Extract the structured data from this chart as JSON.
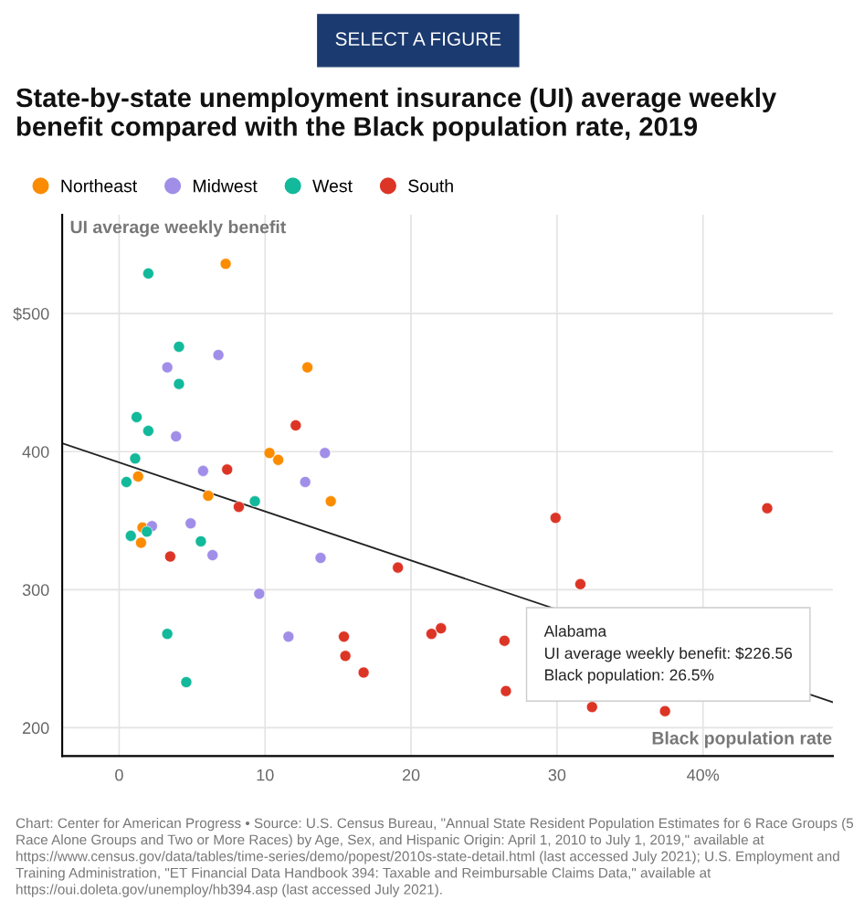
{
  "chart_data": {
    "type": "scatter",
    "title": "State-by-state unemployment insurance (UI) average weekly benefit compared with the Black population rate, 2019",
    "xlabel": "Black population rate",
    "ylabel": "UI average weekly benefit",
    "xlim": [
      -3.9,
      48.9
    ],
    "ylim": [
      179.5,
      571.5
    ],
    "xticks": [
      0,
      10,
      20,
      30,
      {
        "value": 40,
        "label": "40%"
      }
    ],
    "yticks": [
      200,
      300,
      400,
      {
        "value": 500,
        "label": "$500"
      }
    ],
    "grid": true,
    "legend": "top left",
    "marker": "circle",
    "series": [
      {
        "name": "Northeast",
        "color": "#fb8c00",
        "x": [
          7.3,
          12.9,
          10.3,
          10.9,
          1.3,
          6.1,
          14.5,
          1.6,
          1.5
        ],
        "values": [
          536,
          461,
          399,
          394,
          382,
          368,
          364,
          345,
          334
        ]
      },
      {
        "name": "Midwest",
        "color": "#a08ee8",
        "x": [
          6.8,
          3.3,
          3.9,
          14.1,
          5.75,
          12.75,
          4.9,
          2.25,
          6.4,
          13.8,
          9.6,
          11.6
        ],
        "values": [
          470,
          461,
          411,
          399,
          386,
          378,
          348,
          346,
          325,
          323,
          297,
          266
        ]
      },
      {
        "name": "West",
        "color": "#12b99a",
        "x": [
          2.0,
          4.1,
          4.1,
          1.2,
          2.0,
          1.1,
          0.5,
          9.3,
          0.8,
          1.9,
          5.6,
          3.3,
          4.6
        ],
        "values": [
          529,
          476,
          449,
          425,
          415,
          395,
          378,
          364,
          339,
          342,
          335,
          268,
          233
        ]
      },
      {
        "name": "South",
        "color": "#dc3526",
        "x": [
          12.1,
          7.4,
          8.2,
          3.5,
          19.1,
          29.9,
          44.4,
          31.6,
          15.4,
          15.5,
          16.75,
          21.4,
          22.05,
          26.4,
          26.5,
          32.4,
          37.4
        ],
        "values": [
          419,
          387,
          360,
          324,
          316,
          352,
          359,
          304,
          266,
          252,
          240,
          268,
          272,
          263,
          226.56,
          215,
          212
        ]
      },
      {
        "type": "line",
        "marker": "none",
        "color": "#222222",
        "x": [
          -3.9,
          48.9
        ],
        "values": [
          406,
          218.5
        ]
      }
    ],
    "annotations": [
      "SELECT A FIGURE",
      {
        "text": "Alabama\nUI average weekly benefit: $226.56\nBlack population: 26.5%",
        "x": 26.5,
        "y": 226.56
      },
      "Chart: Center for American Progress • Source: U.S. Census Bureau, \"Annual State Resident Population Estimates for 6 Race Groups (5 Race Alone Groups and Two or More Races) by Age, Sex, and Hispanic Origin: April 1, 2010 to July 1, 2019,\" available at https://www.census.gov/data/tables/time-series/demo/popest/2010s-state-detail.html (last accessed July 2021); U.S. Employment and Training Administration, \"ET Financial Data Handbook 394: Taxable and Reimbursable Claims Data,\" available at https://oui.doleta.gov/unemploy/hb394.asp (last accessed July 2021)."
    ]
  }
}
